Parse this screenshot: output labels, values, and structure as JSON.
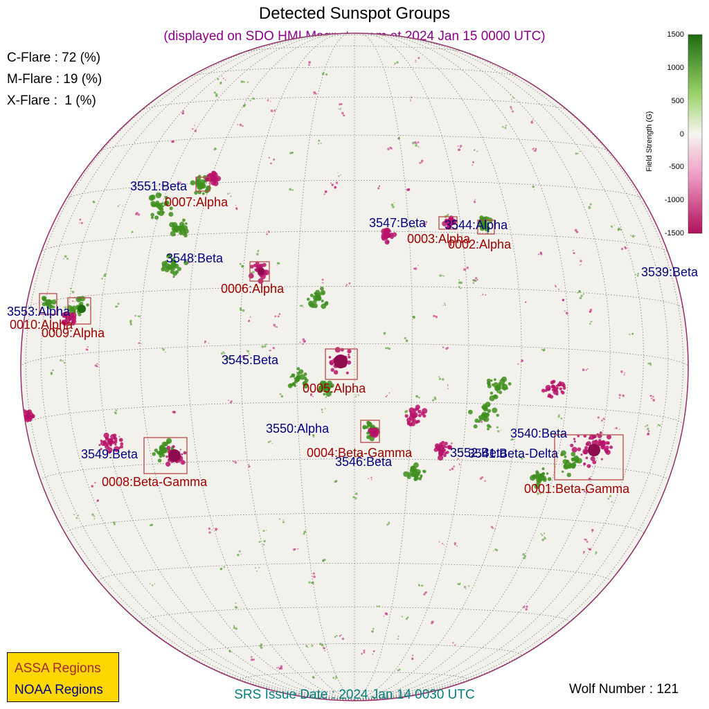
{
  "title": "Detected Sunspot Groups",
  "subtitle": "(displayed on SDO HMI Magnetogram at 2024 Jan 15 0000 UTC)",
  "flare_probabilities": [
    {
      "text": "C-Flare : 72 (%)"
    },
    {
      "text": "M-Flare : 19 (%)"
    },
    {
      "text": "X-Flare :  1 (%)"
    }
  ],
  "colorbar": {
    "title": "Field Strength (G)",
    "ticks": [
      "1500",
      "1000",
      "500",
      "0",
      "-500",
      "-1000",
      "-1500"
    ],
    "colors": {
      "positive": "#2e7d1a",
      "zero": "#f7f5f0",
      "negative": "#c2185b"
    }
  },
  "colors": {
    "assa": "#a00000",
    "noaa": "#000080",
    "box": "#b84a4a"
  },
  "noaa_regions": [
    {
      "label": "3551:Beta"
    },
    {
      "label": "3547:Beta"
    },
    {
      "label": "3544:Alpha"
    },
    {
      "label": "3548:Beta"
    },
    {
      "label": "3539:Beta"
    },
    {
      "label": "3553:Alpha"
    },
    {
      "label": "3545:Beta"
    },
    {
      "label": "3550:Alpha"
    },
    {
      "label": "3540:Beta"
    },
    {
      "label": "3549:Beta"
    },
    {
      "label": "3552:Beta"
    },
    {
      "label": "3541:Beta-Delta"
    },
    {
      "label": "3546:Beta"
    }
  ],
  "assa_regions": [
    {
      "label": "0007:Alpha"
    },
    {
      "label": "0003:Alpha"
    },
    {
      "label": "0002:Alpha"
    },
    {
      "label": "0006:Alpha"
    },
    {
      "label": "0010:Alpha"
    },
    {
      "label": "0009:Alpha"
    },
    {
      "label": "0005:Alpha"
    },
    {
      "label": "0004:Beta-Gamma"
    },
    {
      "label": "0008:Beta-Gamma"
    },
    {
      "label": "0001:Beta-Gamma"
    }
  ],
  "legend": {
    "assa": "ASSA Regions",
    "noaa": "NOAA Regions"
  },
  "srs_issue": "SRS Issue Date : 2024 Jan 14 0030 UTC",
  "wolf_number": "Wolf Number : 121"
}
